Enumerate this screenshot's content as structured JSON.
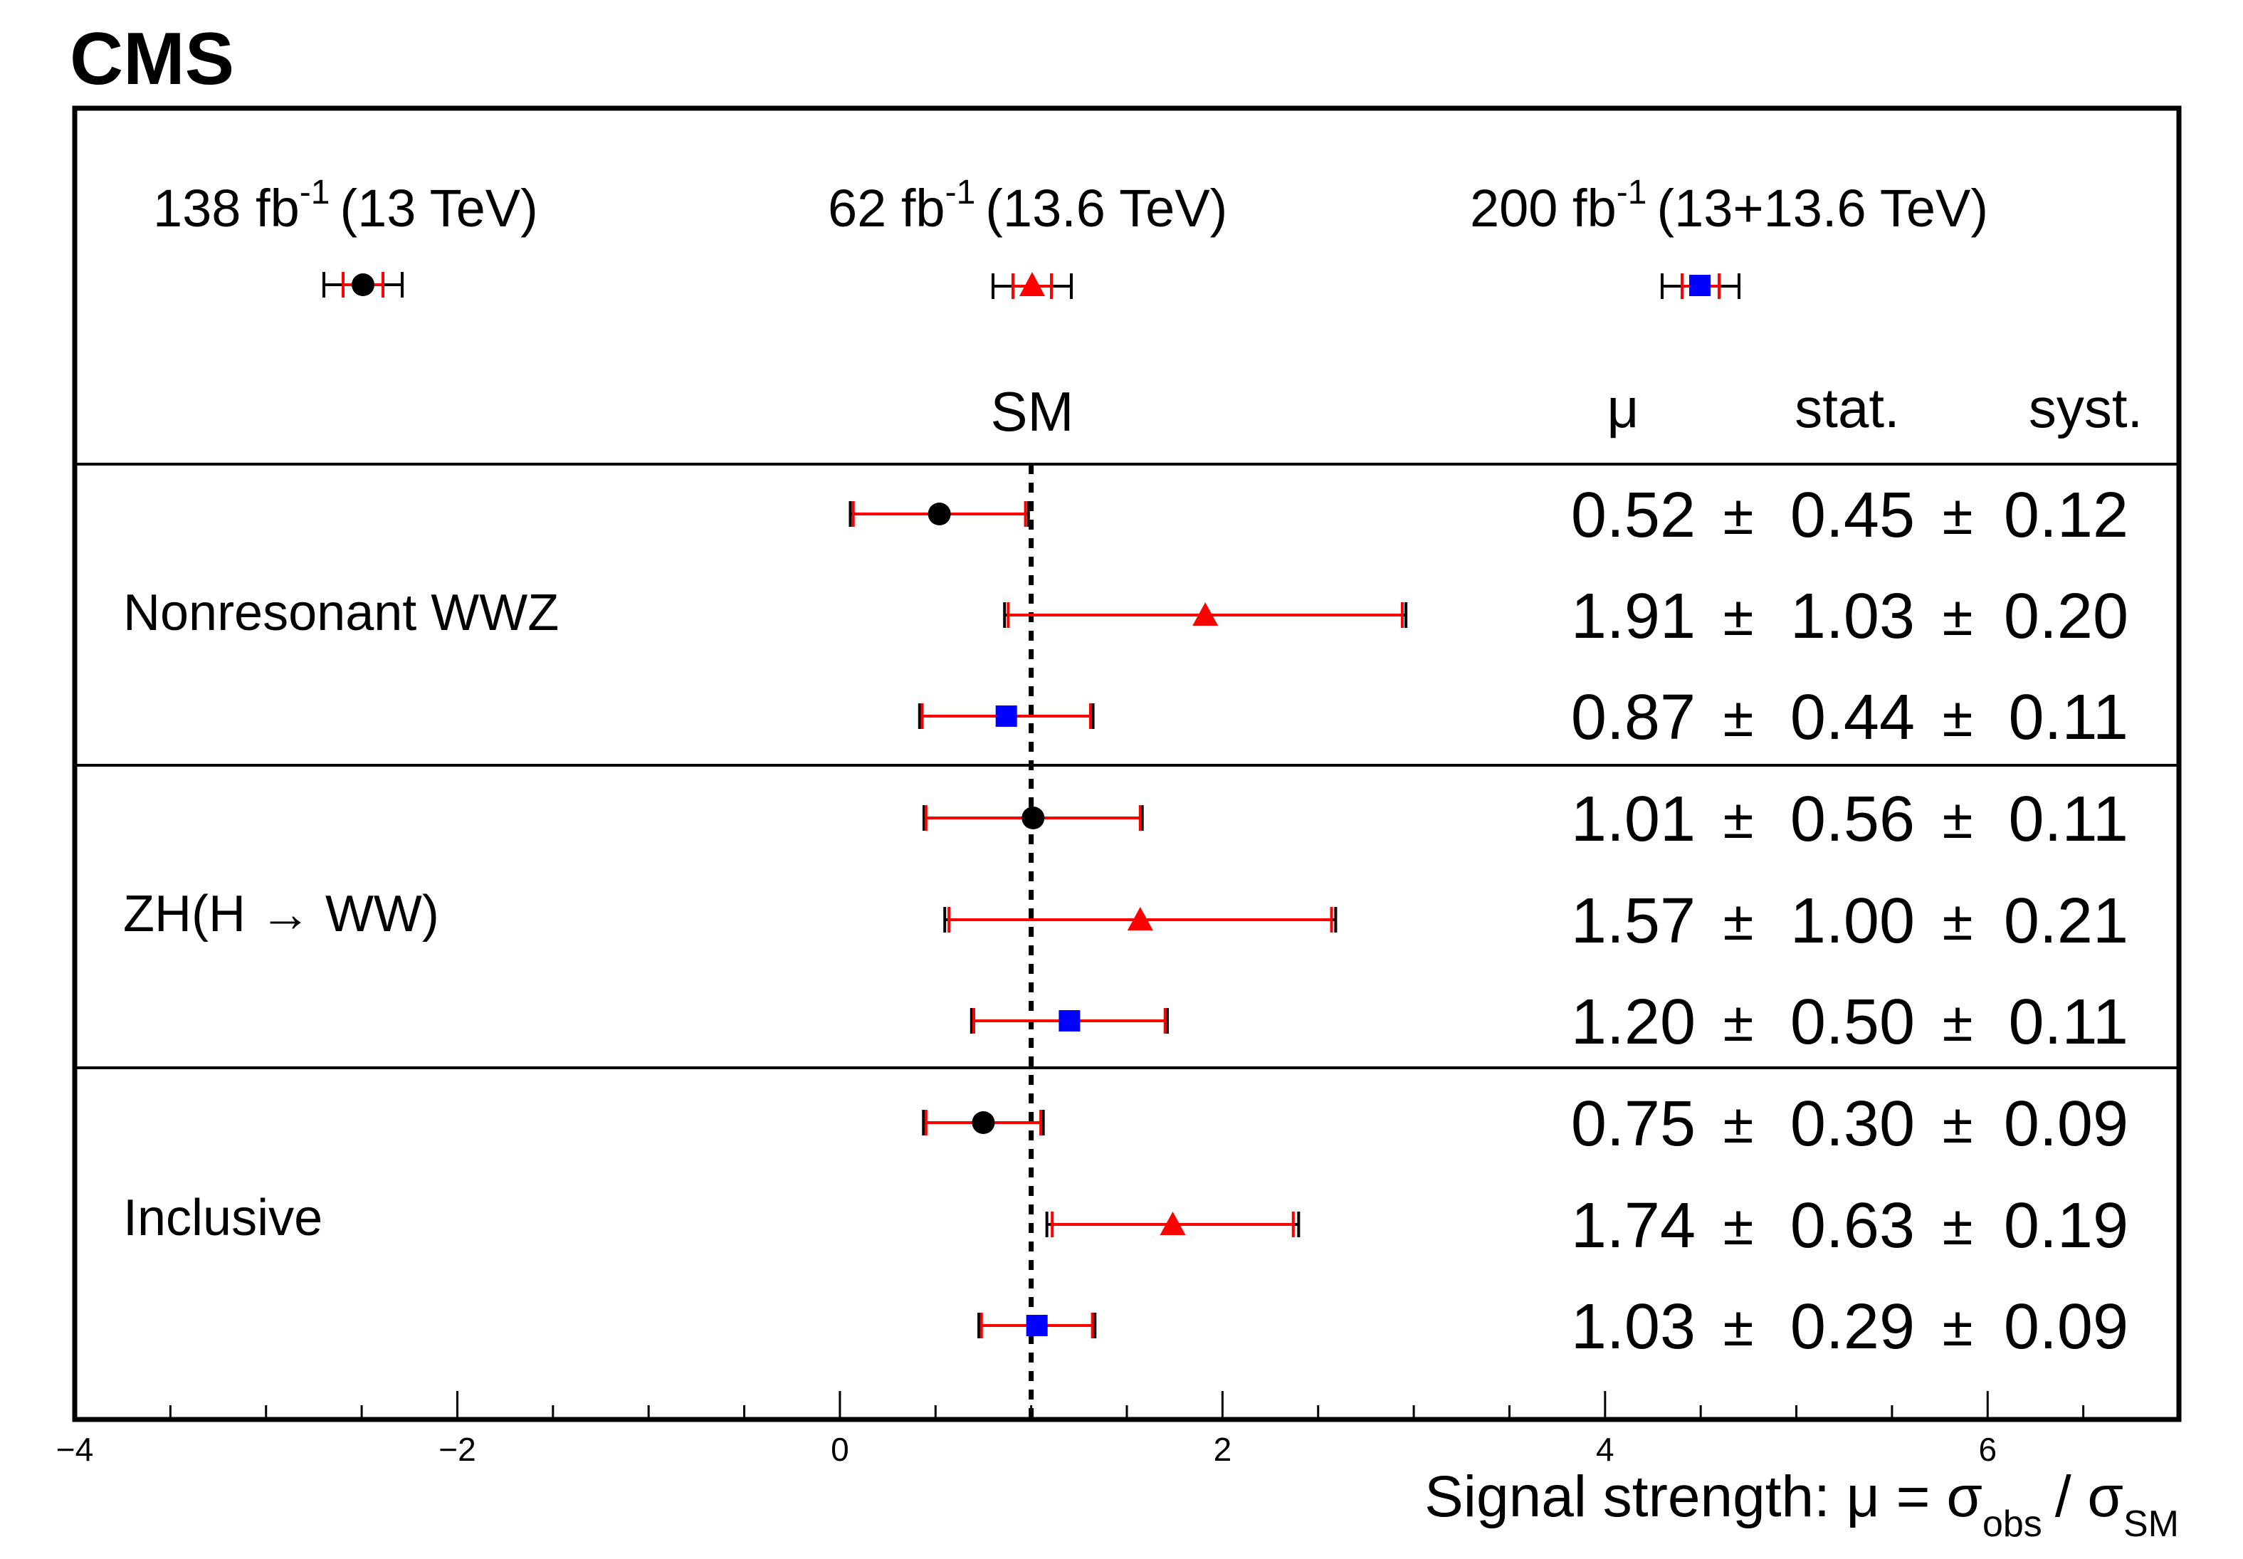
{
  "header": {
    "experiment": "CMS"
  },
  "legend": [
    {
      "name": "138 fb",
      "sup": "-1",
      "energy": "(13 TeV)",
      "marker": "circle",
      "color": "#000000"
    },
    {
      "name": "62 fb",
      "sup": "-1",
      "energy": "(13.6 TeV)",
      "marker": "triangle",
      "color": "#ff0000"
    },
    {
      "name": "200 fb",
      "sup": "-1",
      "energy": "(13+13.6 TeV)",
      "marker": "square",
      "color": "#0000ff"
    }
  ],
  "columns": {
    "sm": "SM",
    "mu": "μ",
    "stat": "stat.",
    "syst": "syst."
  },
  "pm_symbol": "±",
  "categories": [
    "Nonresonant WWZ",
    "ZH(H → WW)",
    "Inclusive"
  ],
  "axis": {
    "title_prefix": "Signal strength: μ = σ",
    "sub_obs": "obs",
    "slash": "/ σ",
    "sub_sm": "SM",
    "ticks": [
      "−4",
      "−2",
      "0",
      "2",
      "4",
      "6"
    ]
  },
  "chart_data": {
    "type": "scatter",
    "xlim": [
      -4,
      7
    ],
    "sm_line": 1,
    "legend_position": "top",
    "series": [
      {
        "name": "138 fb-1 (13 TeV)",
        "values": [
          {
            "category": "Nonresonant WWZ",
            "mu": 0.52,
            "stat": 0.45,
            "syst": 0.12,
            "mu_txt": "0.52",
            "stat_txt": "0.45",
            "syst_txt": "0.12"
          },
          {
            "category": "ZH(H → WW)",
            "mu": 1.01,
            "stat": 0.56,
            "syst": 0.11,
            "mu_txt": "1.01",
            "stat_txt": "0.56",
            "syst_txt": "0.11"
          },
          {
            "category": "Inclusive",
            "mu": 0.75,
            "stat": 0.3,
            "syst": 0.09,
            "mu_txt": "0.75",
            "stat_txt": "0.30",
            "syst_txt": "0.09"
          }
        ]
      },
      {
        "name": "62 fb-1 (13.6 TeV)",
        "values": [
          {
            "category": "Nonresonant WWZ",
            "mu": 1.91,
            "stat": 1.03,
            "syst": 0.2,
            "mu_txt": "1.91",
            "stat_txt": "1.03",
            "syst_txt": "0.20"
          },
          {
            "category": "ZH(H → WW)",
            "mu": 1.57,
            "stat": 1.0,
            "syst": 0.21,
            "mu_txt": "1.57",
            "stat_txt": "1.00",
            "syst_txt": "0.21"
          },
          {
            "category": "Inclusive",
            "mu": 1.74,
            "stat": 0.63,
            "syst": 0.19,
            "mu_txt": "1.74",
            "stat_txt": "0.63",
            "syst_txt": "0.19"
          }
        ]
      },
      {
        "name": "200 fb-1 (13+13.6 TeV)",
        "values": [
          {
            "category": "Nonresonant WWZ",
            "mu": 0.87,
            "stat": 0.44,
            "syst": 0.11,
            "mu_txt": "0.87",
            "stat_txt": "0.44",
            "syst_txt": "0.11"
          },
          {
            "category": "ZH(H → WW)",
            "mu": 1.2,
            "stat": 0.5,
            "syst": 0.11,
            "mu_txt": "1.20",
            "stat_txt": "0.50",
            "syst_txt": "0.11"
          },
          {
            "category": "Inclusive",
            "mu": 1.03,
            "stat": 0.29,
            "syst": 0.09,
            "mu_txt": "1.03",
            "stat_txt": "0.29",
            "syst_txt": "0.09"
          }
        ]
      }
    ]
  }
}
